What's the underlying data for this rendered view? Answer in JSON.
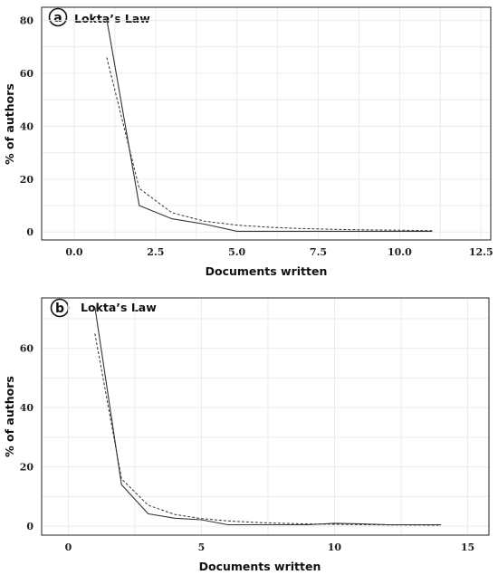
{
  "chart_data": [
    {
      "type": "line",
      "panel_label": "a",
      "title": "Lokta’s Law",
      "xlabel": "Documents written",
      "ylabel": "% of authors",
      "xlim": [
        -1.0,
        12.8
      ],
      "ylim": [
        -3,
        85
      ],
      "xticks": [
        0.0,
        2.5,
        5.0,
        7.5,
        10.0,
        12.5
      ],
      "xtick_labels": [
        "0.0",
        "2.5",
        "5.0",
        "7.5",
        "10.0",
        "12.5"
      ],
      "yticks": [
        0,
        20,
        40,
        60,
        80
      ],
      "ytick_labels": [
        "0",
        "20",
        "40",
        "60",
        "80"
      ],
      "grid": true,
      "series": [
        {
          "style": "solid",
          "x": [
            1,
            2,
            3,
            4,
            5,
            6,
            7,
            8,
            9,
            10,
            11
          ],
          "y": [
            80.5,
            10,
            5,
            3,
            0.3,
            0.3,
            0.3,
            0.3,
            0.3,
            0.3,
            0.3
          ]
        },
        {
          "style": "dashed",
          "x": [
            1,
            2,
            3,
            4,
            5,
            6,
            7,
            8,
            9,
            10,
            11
          ],
          "y": [
            66,
            16.5,
            7.3,
            4.1,
            2.6,
            1.8,
            1.3,
            1.0,
            0.8,
            0.7,
            0.5
          ]
        }
      ]
    },
    {
      "type": "line",
      "panel_label": "b",
      "title": "Lokta’s Law",
      "xlabel": "Documents written",
      "ylabel": "% of authors",
      "xlim": [
        -1.0,
        15.8
      ],
      "ylim": [
        -3,
        77
      ],
      "xticks": [
        0,
        5,
        10,
        15
      ],
      "xtick_labels": [
        "0",
        "5",
        "10",
        "15"
      ],
      "yticks": [
        0,
        20,
        40,
        60
      ],
      "ytick_labels": [
        "0",
        "20",
        "40",
        "60"
      ],
      "grid": true,
      "series": [
        {
          "style": "solid",
          "x": [
            1,
            2,
            3,
            4,
            5,
            6,
            7,
            8,
            9,
            10,
            11,
            12,
            13,
            14
          ],
          "y": [
            74,
            14,
            4.2,
            2.7,
            2.2,
            0.5,
            0.5,
            0.5,
            0.5,
            1.0,
            0.8,
            0.5,
            0.5,
            0.5
          ]
        },
        {
          "style": "dashed",
          "x": [
            1,
            2,
            3,
            4,
            5,
            6,
            7,
            8,
            9,
            10,
            11,
            12,
            13,
            14
          ],
          "y": [
            65,
            16,
            7.1,
            4,
            2.6,
            1.8,
            1.3,
            1.0,
            0.8,
            0.65,
            0.55,
            0.45,
            0.4,
            0.35
          ]
        }
      ]
    }
  ]
}
